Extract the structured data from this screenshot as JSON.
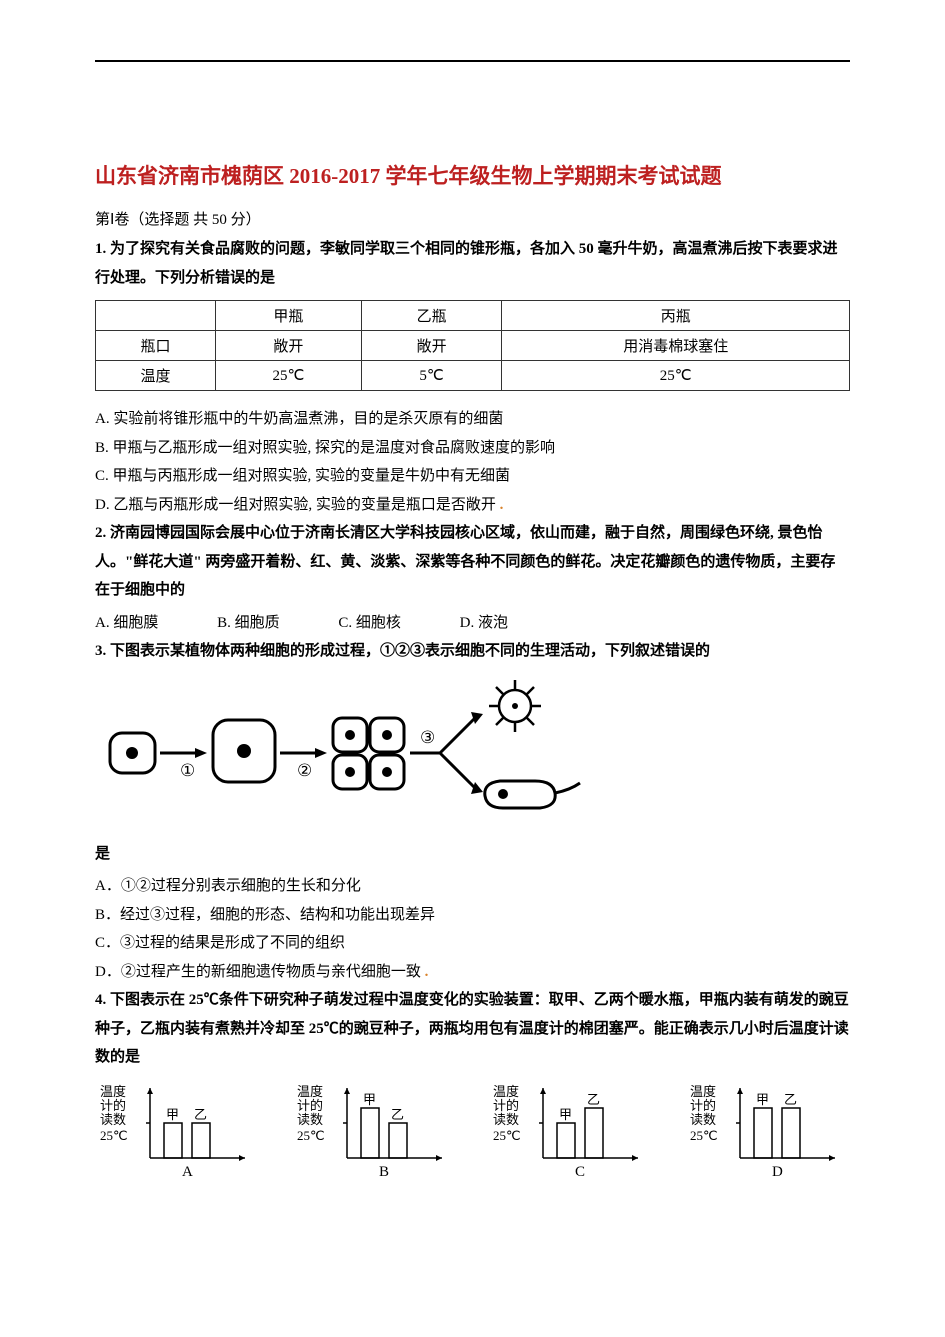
{
  "title": "山东省济南市槐荫区 2016-2017 学年七年级生物上学期期末考试试题",
  "section_header": "第Ⅰ卷（选择题 共 50 分）",
  "q1": {
    "text": "1. 为了探究有关食品腐败的问题，李敏同学取三个相同的锥形瓶，各加入 50 毫升牛奶，高温煮沸后按下表要求进行处理。下列分析错误的是",
    "table": {
      "headers": [
        "",
        "甲瓶",
        "乙瓶",
        "丙瓶"
      ],
      "rows": [
        [
          "瓶口",
          "敞开",
          "敞开",
          "用消毒棉球塞住"
        ],
        [
          "温度",
          "25℃",
          "5℃",
          "25℃"
        ]
      ]
    },
    "options": {
      "A": "A. 实验前将锥形瓶中的牛奶高温煮沸，目的是杀灭原有的细菌",
      "B": "B. 甲瓶与乙瓶形成一组对照实验, 探究的是温度对食品腐败速度的影响",
      "C": "C. 甲瓶与丙瓶形成一组对照实验, 实验的变量是牛奶中有无细菌",
      "D": "D. 乙瓶与丙瓶形成一组对照实验, 实验的变量是瓶口是否敞开"
    }
  },
  "q2": {
    "text": "2. 济南园博园国际会展中心位于济南长清区大学科技园核心区域，依山而建，融于自然，周围绿色环绕, 景色怡人。\"鲜花大道\" 两旁盛开着粉、红、黄、淡紫、深紫等各种不同颜色的鲜花。决定花瓣颜色的遗传物质，主要存在于细胞中的",
    "options": {
      "A": "A. 细胞膜",
      "B": "B. 细胞质",
      "C": "C. 细胞核",
      "D": "D. 液泡"
    }
  },
  "q3": {
    "text": "3. 下图表示某植物体两种细胞的形成过程，①②③表示细胞不同的生理活动，下列叙述错误的",
    "text_end": "是",
    "diagram": {
      "labels": {
        "step1": "①",
        "step2": "②",
        "step3": "③"
      }
    },
    "options": {
      "A": "A．①②过程分别表示细胞的生长和分化",
      "B": "B．经过③过程，细胞的形态、结构和功能出现差异",
      "C": "C．③过程的结果是形成了不同的组织",
      "D": "D．②过程产生的新细胞遗传物质与亲代细胞一致"
    }
  },
  "q4": {
    "text": "4. 下图表示在 25℃条件下研究种子萌发过程中温度变化的实验装置：取甲、乙两个暖水瓶，甲瓶内装有萌发的豌豆种子，乙瓶内装有煮熟并冷却至 25℃的豌豆种子，两瓶均用包有温度计的棉团塞严。能正确表示几小时后温度计读数的是",
    "charts": {
      "ylabel_lines": [
        "温度",
        "计的",
        "读数"
      ],
      "baseline_label": "25℃",
      "bar_labels": [
        "甲",
        "乙"
      ],
      "labels": [
        "A",
        "B",
        "C",
        "D"
      ],
      "data": [
        {
          "jia": 35,
          "yi": 35
        },
        {
          "jia": 50,
          "yi": 35
        },
        {
          "jia": 35,
          "yi": 50
        },
        {
          "jia": 50,
          "yi": 50
        }
      ],
      "baseline_h": 35
    }
  },
  "colors": {
    "title_color": "#bd2020",
    "text_color": "#000000",
    "orange": "#d9822b"
  }
}
